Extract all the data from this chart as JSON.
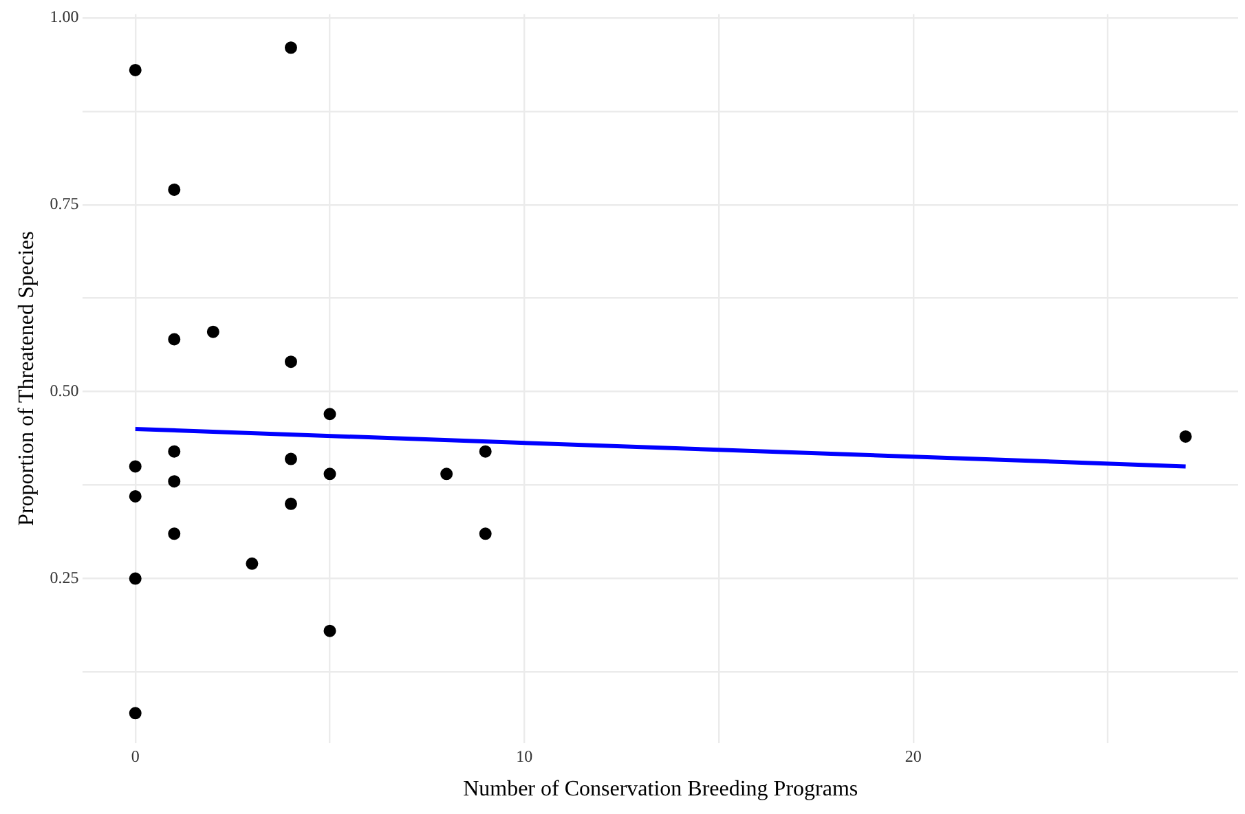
{
  "chart_data": {
    "type": "scatter",
    "xlabel": "Number of Conservation Breeding Programs",
    "ylabel": "Proportion of Threatened Species",
    "x": [
      0,
      4,
      1,
      1,
      2,
      4,
      5,
      1,
      0,
      4,
      5,
      8,
      9,
      1,
      0,
      4,
      1,
      9,
      3,
      0,
      5,
      0,
      27
    ],
    "xlim": [
      -1.35,
      28.35
    ],
    "ylim": [
      0.03,
      1.005
    ],
    "xticks": [
      0,
      {
        "value": 5,
        "label": null
      },
      10,
      {
        "value": 15,
        "label": null
      },
      20,
      {
        "value": 25,
        "label": null
      }
    ],
    "yticks": [
      {
        "value": 0.125,
        "label": null
      },
      {
        "value": 0.25,
        "label": "0.25"
      },
      {
        "value": 0.375,
        "label": null
      },
      {
        "value": 0.5,
        "label": "0.50"
      },
      {
        "value": 0.625,
        "label": null
      },
      {
        "value": 0.75,
        "label": "0.75"
      },
      {
        "value": 0.875,
        "label": null
      },
      {
        "value": 1,
        "label": "1.00"
      }
    ],
    "grid": true,
    "legend": false,
    "series": [
      {
        "type": "scatter",
        "marker": "circle",
        "color": "#000000",
        "values": [
          0.93,
          0.96,
          0.77,
          0.57,
          0.58,
          0.54,
          0.47,
          0.42,
          0.4,
          0.41,
          0.39,
          0.39,
          0.42,
          0.38,
          0.36,
          0.35,
          0.31,
          0.31,
          0.27,
          0.25,
          0.18,
          0.07,
          0.44
        ]
      },
      {
        "type": "line",
        "marker": "none",
        "color": "#0000ff",
        "x": [
          0,
          27
        ],
        "values": [
          0.45,
          0.4
        ]
      }
    ]
  }
}
